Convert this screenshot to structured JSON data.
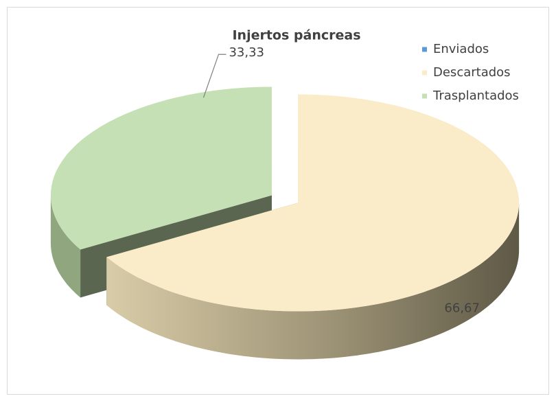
{
  "chart_data": {
    "type": "pie3d",
    "title": "Injertos páncreas",
    "categories": [
      "Enviados",
      "Descartados",
      "Trasplantados"
    ],
    "values": [
      0,
      66.67,
      33.33
    ],
    "value_labels": [
      null,
      "66,67",
      "33,33"
    ],
    "colors": [
      "#5b9bd5",
      "#fbecc9",
      "#c5e0b4"
    ],
    "legend": "top-right"
  }
}
